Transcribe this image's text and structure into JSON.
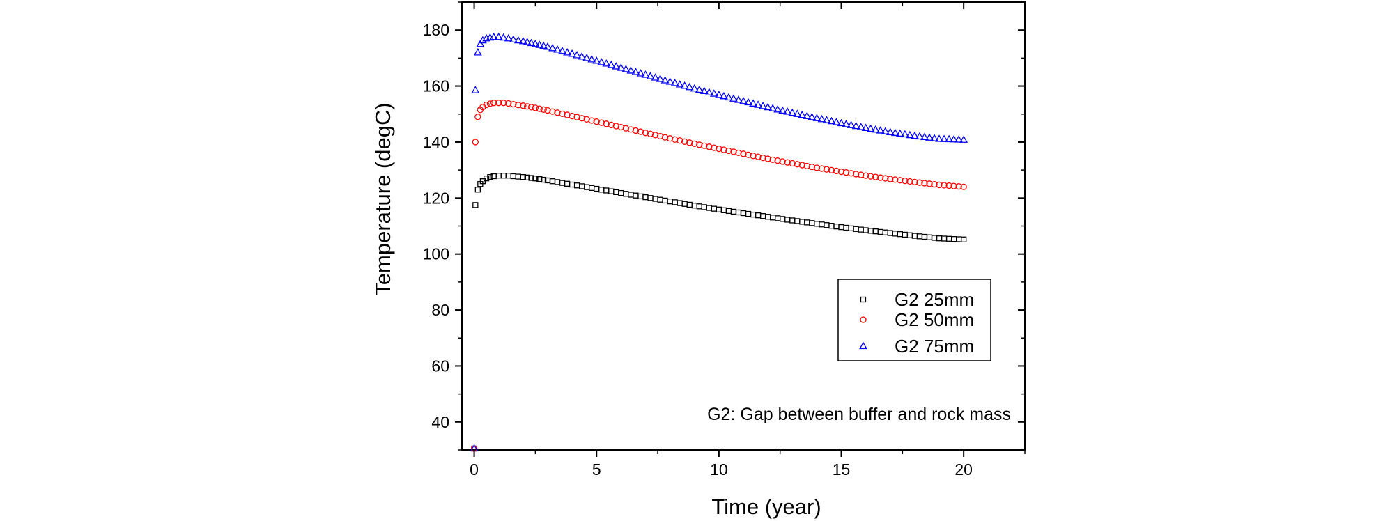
{
  "chart_data": {
    "type": "scatter",
    "xlabel": "Time (year)",
    "ylabel": "Temperature (degC)",
    "xlim": [
      -0.5,
      22.5
    ],
    "ylim": [
      30,
      190
    ],
    "x_ticks": [
      0,
      5,
      10,
      15,
      20
    ],
    "x_tick_labels": [
      "0",
      "5",
      "10",
      "15",
      "20"
    ],
    "y_ticks": [
      40,
      60,
      80,
      100,
      120,
      140,
      160,
      180
    ],
    "y_tick_labels": [
      "40",
      "60",
      "80",
      "100",
      "120",
      "140",
      "160",
      "180"
    ],
    "x_minor_step": 2.5,
    "y_minor_step": 10,
    "grid": false,
    "legend_position": "center-right",
    "annotation": "G2: Gap between buffer and rock mass",
    "series": [
      {
        "name": "G2 25mm",
        "marker": "square",
        "color": "#000000",
        "x": [
          0,
          0.05,
          0.15,
          0.25,
          0.35,
          0.5,
          0.65,
          0.8,
          1.0,
          1.2,
          1.4,
          1.6,
          2.0,
          2.5,
          3,
          4,
          5,
          6,
          7,
          8,
          9,
          10,
          11,
          12,
          13,
          14,
          15,
          16,
          17,
          18,
          19,
          20
        ],
        "y": [
          30.5,
          117.5,
          123,
          125,
          126,
          127,
          127.5,
          127.8,
          128,
          128,
          128,
          127.8,
          127.5,
          127,
          126.3,
          124.8,
          123.3,
          121.8,
          120.3,
          118.8,
          117.3,
          115.9,
          114.6,
          113.3,
          112,
          110.8,
          109.6,
          108.5,
          107.5,
          106.5,
          105.6,
          105.2
        ]
      },
      {
        "name": "G2 50mm",
        "marker": "circle",
        "color": "#ff0000",
        "x": [
          0,
          0.05,
          0.15,
          0.25,
          0.35,
          0.5,
          0.65,
          0.8,
          1.0,
          1.2,
          1.4,
          1.6,
          2.0,
          2.5,
          3,
          4,
          5,
          6,
          7,
          8,
          9,
          10,
          11,
          12,
          13,
          14,
          15,
          16,
          17,
          18,
          19,
          20
        ],
        "y": [
          30.5,
          140,
          149,
          151.5,
          152.5,
          153.3,
          153.7,
          154,
          154,
          154,
          153.8,
          153.5,
          153,
          152.2,
          151.3,
          149.3,
          147.3,
          145.3,
          143.3,
          141.3,
          139.4,
          137.6,
          135.8,
          134,
          132.4,
          130.8,
          129.4,
          128,
          126.8,
          125.7,
          124.7,
          124
        ]
      },
      {
        "name": "G2 75mm",
        "marker": "triangle",
        "color": "#0000ff",
        "x": [
          0,
          0.05,
          0.15,
          0.25,
          0.35,
          0.5,
          0.65,
          0.8,
          1.0,
          1.2,
          1.4,
          1.6,
          2.0,
          2.5,
          3,
          4,
          5,
          6,
          7,
          8,
          9,
          10,
          11,
          12,
          13,
          14,
          15,
          16,
          17,
          18,
          19,
          20
        ],
        "y": [
          30.5,
          158.5,
          172,
          175,
          176.3,
          177,
          177.3,
          177.5,
          177.5,
          177.3,
          177,
          176.6,
          176,
          175,
          174,
          171.5,
          169,
          166.5,
          164,
          161.5,
          159.1,
          156.8,
          154.6,
          152.4,
          150.4,
          148.5,
          146.7,
          145,
          143.5,
          142.2,
          141.1,
          140.8
        ]
      }
    ]
  }
}
